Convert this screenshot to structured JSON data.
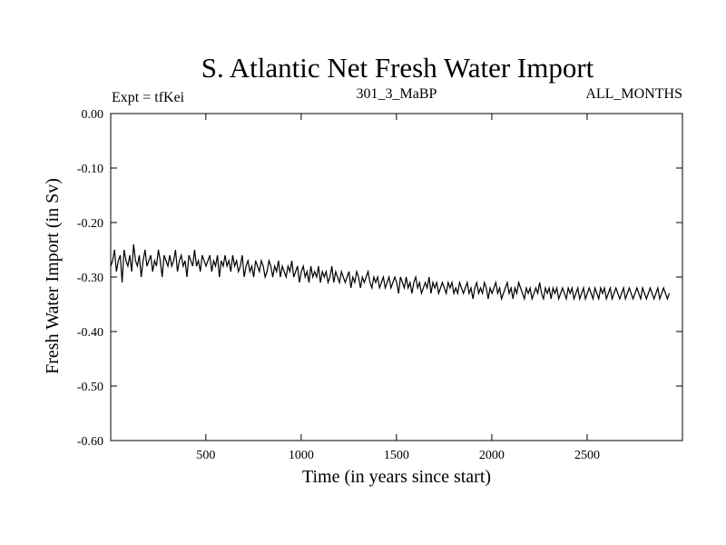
{
  "chart_data": {
    "type": "line",
    "title": "S. Atlantic Net Fresh Water Import",
    "subtitle_left": "Expt = tfKei",
    "subtitle_center": "301_3_MaBP",
    "subtitle_right": "ALL_MONTHS",
    "xlabel": "Time (in years since start)",
    "ylabel": "Fresh Water Import (in Sv)",
    "xlim": [
      1,
      3000
    ],
    "ylim": [
      -0.6,
      0.0
    ],
    "x_ticks": [
      500,
      1000,
      1500,
      2000,
      2500
    ],
    "x_tick_labels": [
      "500",
      "1000",
      "1500",
      "2000",
      "2500"
    ],
    "y_ticks": [
      0.0,
      -0.1,
      -0.2,
      -0.3,
      -0.4,
      -0.5,
      -0.6
    ],
    "y_tick_labels": [
      "0.00",
      "-0.10",
      "-0.20",
      "-0.30",
      "-0.40",
      "-0.50",
      "-0.60"
    ],
    "grid": false,
    "color": "#000000",
    "series": [
      {
        "x_start": 1,
        "x_step": 10,
        "values": [
          -0.28,
          -0.27,
          -0.25,
          -0.29,
          -0.27,
          -0.26,
          -0.31,
          -0.25,
          -0.27,
          -0.28,
          -0.26,
          -0.29,
          -0.24,
          -0.27,
          -0.28,
          -0.26,
          -0.3,
          -0.27,
          -0.25,
          -0.28,
          -0.27,
          -0.26,
          -0.29,
          -0.27,
          -0.28,
          -0.25,
          -0.27,
          -0.3,
          -0.26,
          -0.27,
          -0.28,
          -0.26,
          -0.28,
          -0.27,
          -0.25,
          -0.29,
          -0.27,
          -0.26,
          -0.28,
          -0.27,
          -0.3,
          -0.26,
          -0.27,
          -0.28,
          -0.25,
          -0.28,
          -0.27,
          -0.29,
          -0.26,
          -0.27,
          -0.28,
          -0.27,
          -0.26,
          -0.29,
          -0.27,
          -0.28,
          -0.26,
          -0.3,
          -0.27,
          -0.28,
          -0.26,
          -0.28,
          -0.27,
          -0.29,
          -0.26,
          -0.28,
          -0.27,
          -0.29,
          -0.28,
          -0.26,
          -0.3,
          -0.28,
          -0.27,
          -0.29,
          -0.28,
          -0.3,
          -0.27,
          -0.28,
          -0.29,
          -0.27,
          -0.28,
          -0.3,
          -0.29,
          -0.27,
          -0.28,
          -0.3,
          -0.28,
          -0.29,
          -0.27,
          -0.3,
          -0.28,
          -0.29,
          -0.3,
          -0.28,
          -0.29,
          -0.27,
          -0.3,
          -0.29,
          -0.28,
          -0.31,
          -0.29,
          -0.28,
          -0.3,
          -0.29,
          -0.31,
          -0.28,
          -0.3,
          -0.29,
          -0.3,
          -0.28,
          -0.31,
          -0.29,
          -0.3,
          -0.29,
          -0.31,
          -0.3,
          -0.28,
          -0.31,
          -0.29,
          -0.3,
          -0.31,
          -0.29,
          -0.3,
          -0.31,
          -0.3,
          -0.29,
          -0.32,
          -0.3,
          -0.31,
          -0.29,
          -0.3,
          -0.32,
          -0.3,
          -0.31,
          -0.3,
          -0.29,
          -0.31,
          -0.32,
          -0.3,
          -0.31,
          -0.3,
          -0.32,
          -0.31,
          -0.3,
          -0.32,
          -0.31,
          -0.3,
          -0.32,
          -0.31,
          -0.3,
          -0.31,
          -0.33,
          -0.3,
          -0.31,
          -0.32,
          -0.3,
          -0.32,
          -0.31,
          -0.33,
          -0.31,
          -0.3,
          -0.32,
          -0.31,
          -0.33,
          -0.32,
          -0.31,
          -0.32,
          -0.3,
          -0.33,
          -0.31,
          -0.32,
          -0.31,
          -0.33,
          -0.32,
          -0.31,
          -0.32,
          -0.33,
          -0.31,
          -0.32,
          -0.31,
          -0.33,
          -0.32,
          -0.33,
          -0.31,
          -0.32,
          -0.33,
          -0.32,
          -0.31,
          -0.33,
          -0.32,
          -0.34,
          -0.32,
          -0.31,
          -0.33,
          -0.32,
          -0.33,
          -0.31,
          -0.32,
          -0.34,
          -0.32,
          -0.33,
          -0.32,
          -0.31,
          -0.33,
          -0.32,
          -0.34,
          -0.33,
          -0.32,
          -0.31,
          -0.33,
          -0.32,
          -0.34,
          -0.32,
          -0.33,
          -0.31,
          -0.32,
          -0.33,
          -0.34,
          -0.32,
          -0.33,
          -0.32,
          -0.34,
          -0.33,
          -0.32,
          -0.33,
          -0.31,
          -0.33,
          -0.34,
          -0.32,
          -0.33,
          -0.32,
          -0.34,
          -0.32,
          -0.33,
          -0.32,
          -0.34,
          -0.33,
          -0.32,
          -0.33,
          -0.34,
          -0.32,
          -0.33,
          -0.32,
          -0.34,
          -0.33,
          -0.32,
          -0.34,
          -0.33,
          -0.32,
          -0.34,
          -0.33,
          -0.32,
          -0.33,
          -0.34,
          -0.32,
          -0.33,
          -0.34,
          -0.32,
          -0.33,
          -0.32,
          -0.34,
          -0.33,
          -0.32,
          -0.34,
          -0.33,
          -0.32,
          -0.33,
          -0.34,
          -0.33,
          -0.32,
          -0.34,
          -0.33,
          -0.32,
          -0.33,
          -0.34,
          -0.33,
          -0.32,
          -0.33,
          -0.34,
          -0.32,
          -0.33,
          -0.34,
          -0.33,
          -0.32,
          -0.33,
          -0.34,
          -0.33,
          -0.32,
          -0.34,
          -0.33,
          -0.32,
          -0.33,
          -0.34,
          -0.33
        ]
      }
    ]
  }
}
